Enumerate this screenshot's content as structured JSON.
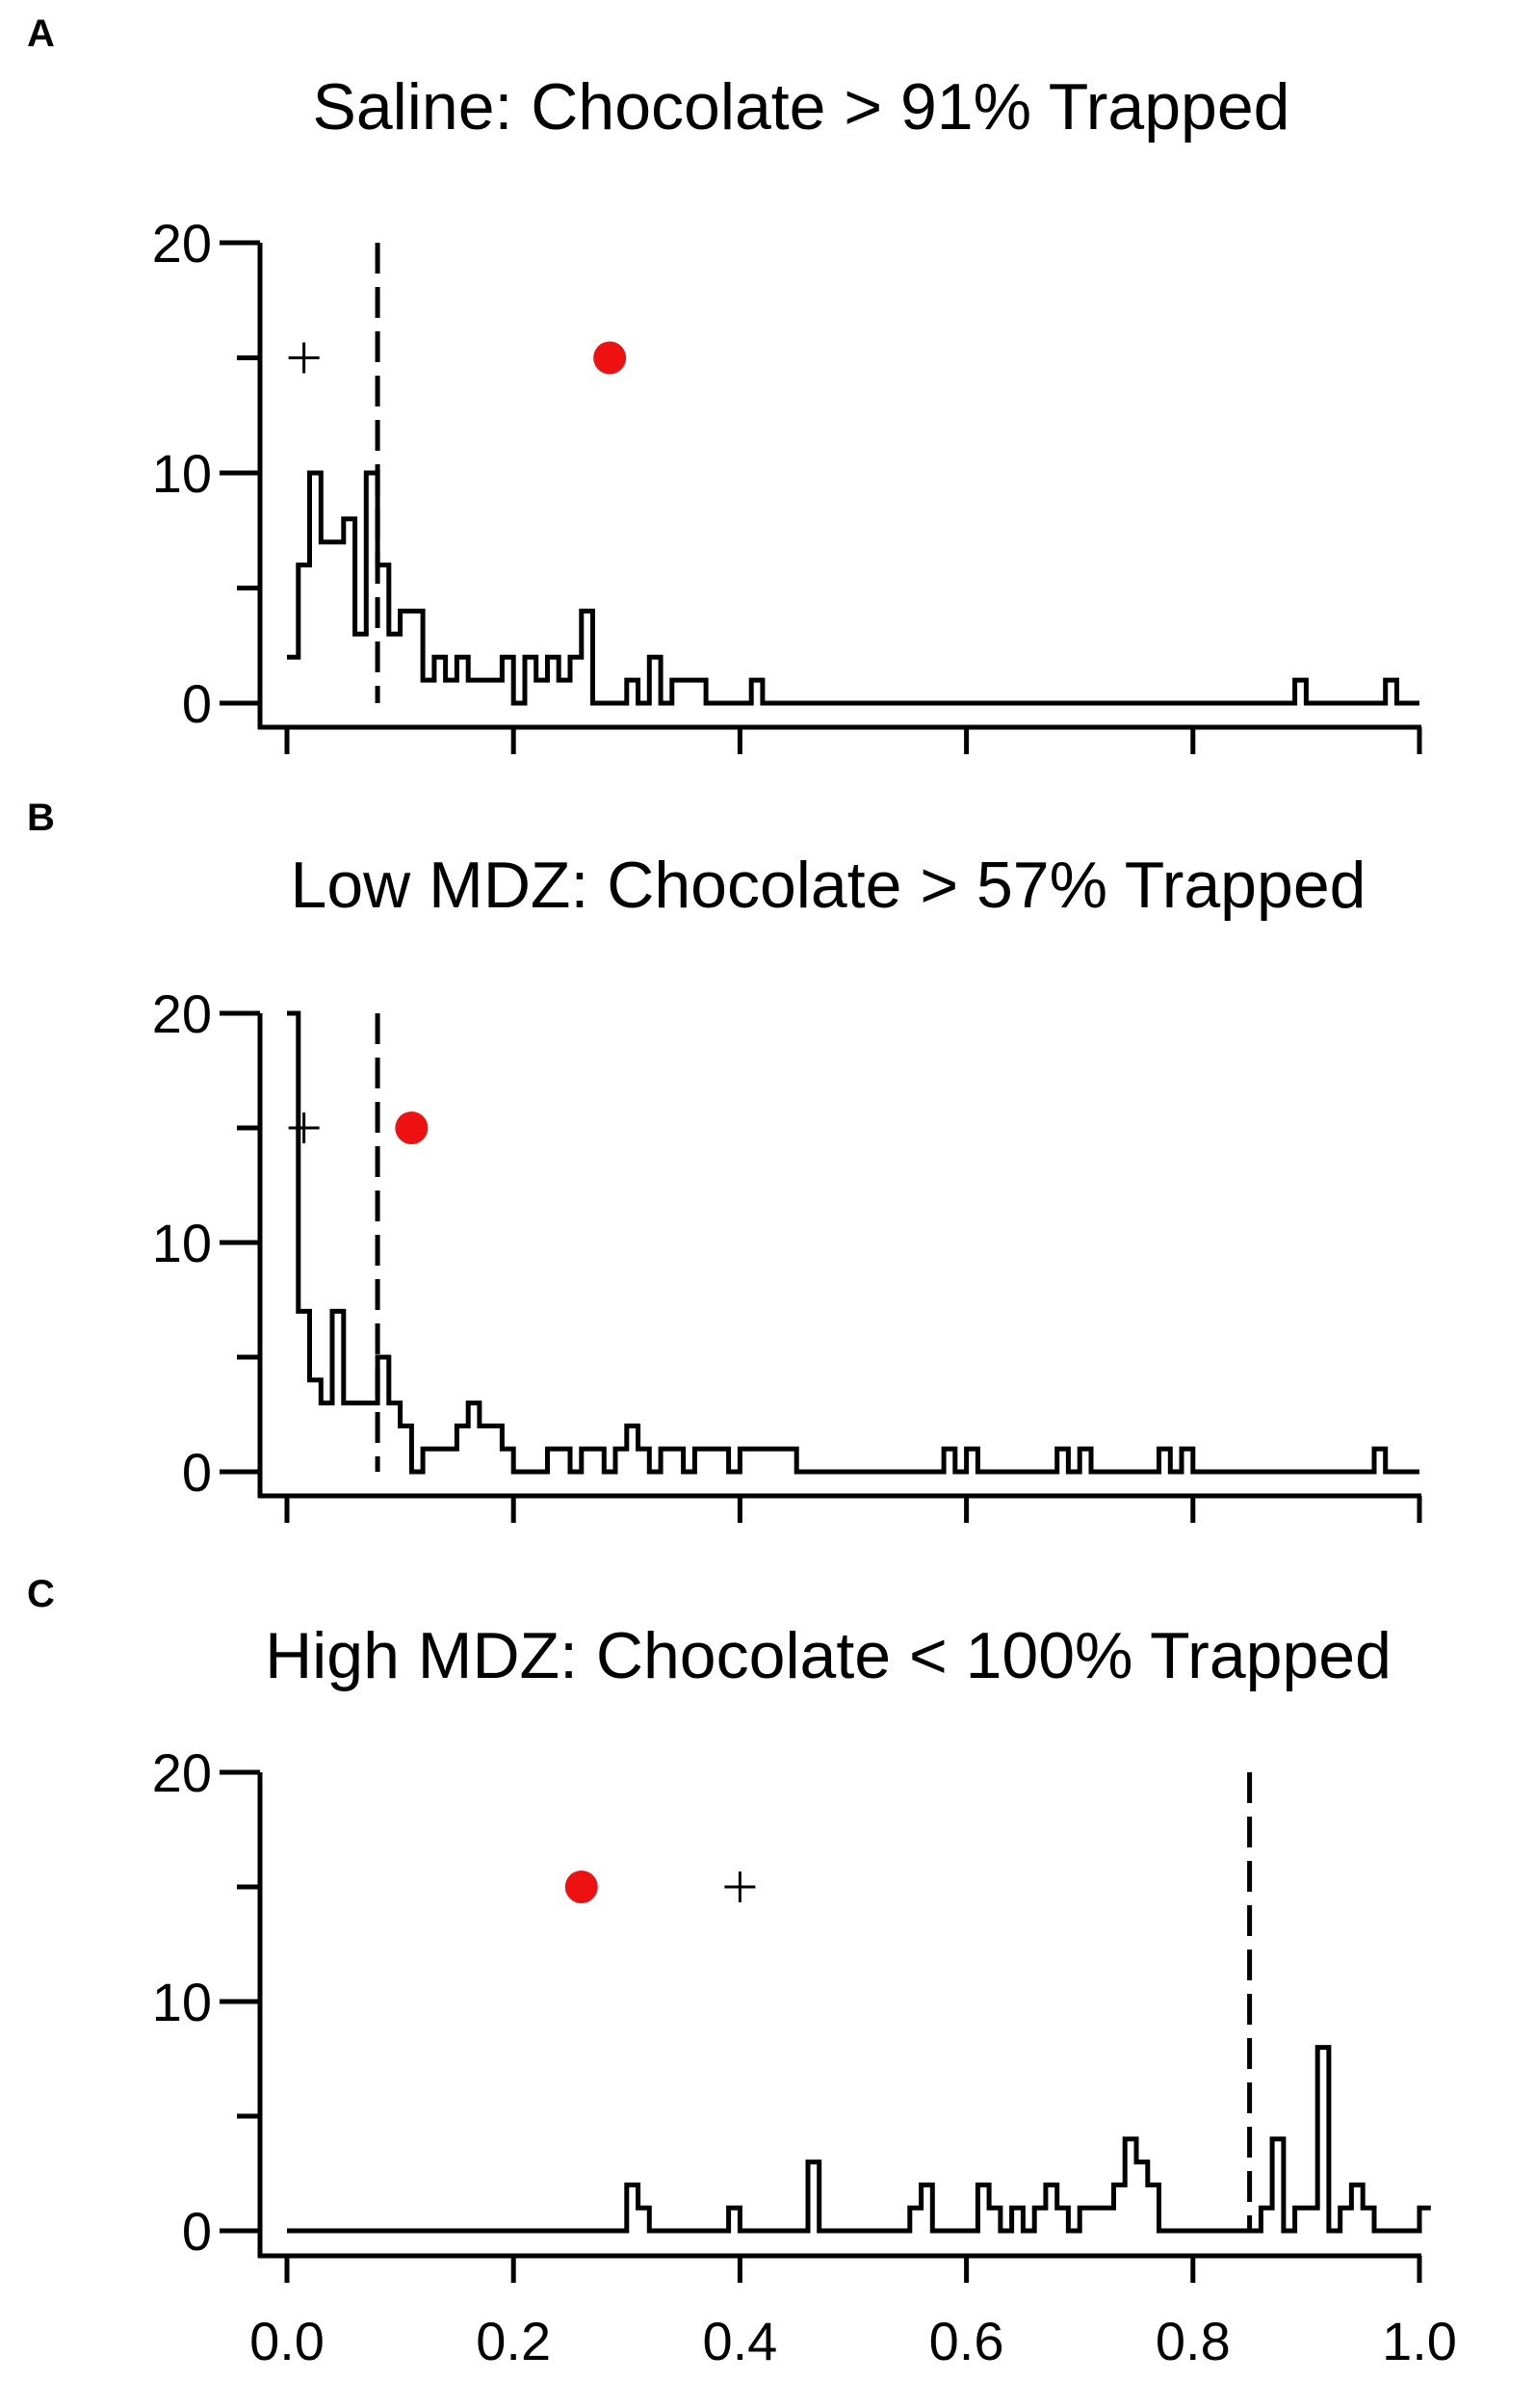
{
  "chart_data": [
    {
      "panel": "A",
      "type": "histogram",
      "title": "Saline: Chocolate > 91% Trapped",
      "xlim": [
        0,
        1
      ],
      "ylim": [
        0,
        20
      ],
      "y_ticks": [
        0,
        10,
        20
      ],
      "y_minor_ticks": [
        5,
        15
      ],
      "x_ticks": [
        0,
        0.2,
        0.4,
        0.6,
        0.8,
        1.0
      ],
      "x_tick_labels_shown": false,
      "bin_width": 0.01,
      "bin_start": 0.0,
      "counts": [
        2,
        6,
        10,
        7,
        7,
        8,
        3,
        10,
        6,
        3,
        4,
        4,
        1,
        2,
        1,
        2,
        1,
        1,
        1,
        2,
        0,
        2,
        1,
        2,
        1,
        2,
        4,
        0,
        0,
        0,
        1,
        0,
        2,
        0,
        1,
        1,
        1,
        0,
        0,
        0,
        0,
        1,
        0,
        0,
        0,
        0,
        0,
        0,
        0,
        0,
        0,
        0,
        0,
        0,
        0,
        0,
        0,
        0,
        0,
        0,
        0,
        0,
        0,
        0,
        0,
        0,
        0,
        0,
        0,
        0,
        0,
        0,
        0,
        0,
        0,
        0,
        0,
        0,
        0,
        0,
        0,
        0,
        0,
        0,
        0,
        0,
        0,
        0,
        0,
        1,
        0,
        0,
        0,
        0,
        0,
        0,
        0,
        1,
        0,
        0
      ],
      "dashed_line_x": 0.08,
      "markers": [
        {
          "shape": "plus",
          "x": 0.015,
          "y": 15
        },
        {
          "shape": "circle",
          "x": 0.285,
          "y": 15,
          "color": "#ee1111"
        }
      ]
    },
    {
      "panel": "B",
      "type": "histogram",
      "title": "Low MDZ: Chocolate > 57% Trapped",
      "xlim": [
        0,
        1
      ],
      "ylim": [
        0,
        20
      ],
      "y_ticks": [
        0,
        10,
        20
      ],
      "y_minor_ticks": [
        5,
        15
      ],
      "x_ticks": [
        0,
        0.2,
        0.4,
        0.6,
        0.8,
        1.0
      ],
      "x_tick_labels_shown": false,
      "bin_width": 0.01,
      "bin_start": 0.0,
      "counts": [
        20,
        7,
        4,
        3,
        7,
        3,
        3,
        3,
        5,
        3,
        2,
        0,
        1,
        1,
        1,
        2,
        3,
        2,
        2,
        1,
        0,
        0,
        0,
        1,
        1,
        0,
        1,
        1,
        0,
        1,
        2,
        1,
        0,
        1,
        1,
        0,
        1,
        1,
        1,
        0,
        1,
        1,
        1,
        1,
        1,
        0,
        0,
        0,
        0,
        0,
        0,
        0,
        0,
        0,
        0,
        0,
        0,
        0,
        1,
        0,
        1,
        0,
        0,
        0,
        0,
        0,
        0,
        0,
        1,
        0,
        1,
        0,
        0,
        0,
        0,
        0,
        0,
        1,
        0,
        1,
        0,
        0,
        0,
        0,
        0,
        0,
        0,
        0,
        0,
        0,
        0,
        0,
        0,
        0,
        0,
        0,
        1,
        0,
        0,
        0
      ],
      "dashed_line_x": 0.08,
      "markers": [
        {
          "shape": "plus",
          "x": 0.015,
          "y": 15
        },
        {
          "shape": "circle",
          "x": 0.11,
          "y": 15,
          "color": "#ee1111"
        }
      ]
    },
    {
      "panel": "C",
      "type": "histogram",
      "title": "High MDZ: Chocolate < 100% Trapped",
      "xlim": [
        0,
        1
      ],
      "ylim": [
        0,
        20
      ],
      "y_ticks": [
        0,
        10,
        20
      ],
      "y_minor_ticks": [
        5,
        15
      ],
      "x_ticks": [
        0,
        0.2,
        0.4,
        0.6,
        0.8,
        1.0
      ],
      "x_tick_labels": [
        "0.0",
        "0.2",
        "0.4",
        "0.6",
        "0.8",
        "1.0"
      ],
      "x_tick_labels_shown": true,
      "bin_width": 0.01,
      "bin_start": 0.0,
      "counts": [
        0,
        0,
        0,
        0,
        0,
        0,
        0,
        0,
        0,
        0,
        0,
        0,
        0,
        0,
        0,
        0,
        0,
        0,
        0,
        0,
        0,
        0,
        0,
        0,
        0,
        0,
        0,
        0,
        0,
        0,
        2,
        1,
        0,
        0,
        0,
        0,
        0,
        0,
        0,
        1,
        0,
        0,
        0,
        0,
        0,
        0,
        3,
        0,
        0,
        0,
        0,
        0,
        0,
        0,
        0,
        1,
        2,
        0,
        0,
        0,
        0,
        2,
        1,
        0,
        1,
        0,
        1,
        2,
        1,
        0,
        1,
        1,
        1,
        2,
        4,
        3,
        2,
        0,
        0,
        0,
        0,
        0,
        0,
        0,
        0,
        0,
        1,
        4,
        0,
        1,
        1,
        8,
        0,
        1,
        2,
        1,
        0,
        0,
        0,
        0,
        1
      ],
      "dashed_line_x": 0.85,
      "markers": [
        {
          "shape": "circle",
          "x": 0.26,
          "y": 15,
          "color": "#ee1111"
        },
        {
          "shape": "plus",
          "x": 0.4,
          "y": 15
        }
      ]
    }
  ]
}
